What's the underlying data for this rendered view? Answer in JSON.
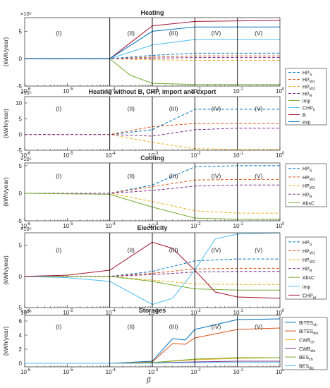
{
  "figure": {
    "xlabel": "β"
  },
  "chart_data": [
    {
      "type": "line",
      "title": "Heating",
      "ylabel": "(kWh/year)",
      "exponent": "×10⁶",
      "yticks": [
        {
          "v": -5,
          "t": "-5"
        },
        {
          "v": 0,
          "t": "0"
        },
        {
          "v": 5,
          "t": "5"
        }
      ],
      "ylim": [
        -5,
        7.5
      ],
      "xlog": true,
      "xlim": [
        1e-06,
        1
      ],
      "region_labels": [
        "(I)",
        "(II)",
        "(III)",
        "(IV)",
        "(V)"
      ],
      "legend": [
        "HP<sub>S</sub>",
        "HP<sub>W1</sub>",
        "HP<sub>W2</sub>",
        "HP<sub>R</sub>",
        "imp",
        "CHP<sub>h</sub>",
        "B",
        "exp"
      ],
      "series": [
        {
          "name": "HP_S",
          "dashed": true,
          "color": "#0072BD",
          "x": [
            1e-06,
            0.0001,
            0.001,
            0.01,
            0.1,
            1
          ],
          "y": [
            0,
            0,
            0.6,
            1,
            1,
            1
          ]
        },
        {
          "name": "HP_W1",
          "dashed": true,
          "color": "#D95319",
          "x": [
            1e-06,
            0.0001,
            0.001,
            0.01,
            0.1,
            1
          ],
          "y": [
            0,
            0,
            0.3,
            0.5,
            0.5,
            0.5
          ]
        },
        {
          "name": "HP_W2",
          "dashed": true,
          "color": "#EDB120",
          "x": [
            1e-06,
            0.0001,
            0.001,
            0.01,
            0.1,
            1
          ],
          "y": [
            0,
            0,
            -0.2,
            -0.3,
            -0.3,
            -0.3
          ]
        },
        {
          "name": "HP_R",
          "dashed": true,
          "color": "#7E2F8E",
          "x": [
            1e-06,
            0.0001,
            0.001,
            0.01,
            0.1,
            1
          ],
          "y": [
            0,
            0,
            0.1,
            0.2,
            0.2,
            0.2
          ]
        },
        {
          "name": "imp",
          "dashed": false,
          "color": "#77AC30",
          "x": [
            1e-06,
            0.0001,
            0.0003,
            0.001,
            0.01,
            1
          ],
          "y": [
            0,
            0,
            -3,
            -4.5,
            -4.7,
            -4.7
          ]
        },
        {
          "name": "CHP_h",
          "dashed": false,
          "color": "#4DBEEE",
          "x": [
            1e-06,
            0.0001,
            0.001,
            0.01,
            1
          ],
          "y": [
            0,
            0,
            2.5,
            3.5,
            3.5
          ]
        },
        {
          "name": "B",
          "dashed": false,
          "color": "#A2142F",
          "x": [
            1e-06,
            0.0001,
            0.001,
            0.01,
            1
          ],
          "y": [
            0,
            0,
            6,
            6.8,
            7
          ]
        },
        {
          "name": "exp",
          "dashed": false,
          "color": "#0072BD",
          "x": [
            1e-06,
            0.0001,
            0.001,
            0.01,
            1
          ],
          "y": [
            0,
            0,
            5,
            5.8,
            5.8
          ]
        }
      ]
    },
    {
      "type": "line",
      "title": "Heating without B, CHP, import and export",
      "ylabel": "(kWh/year)",
      "exponent": "×10⁵",
      "yticks": [
        {
          "v": -5,
          "t": "-5"
        },
        {
          "v": 0,
          "t": "0"
        },
        {
          "v": 5,
          "t": "5"
        },
        {
          "v": 10,
          "t": "10"
        }
      ],
      "ylim": [
        -5,
        12
      ],
      "xlog": true,
      "xlim": [
        1e-06,
        1
      ],
      "region_labels": [
        "(I)",
        "(II)",
        "(III)",
        "(IV)",
        "(V)"
      ],
      "legend": [],
      "series": [
        {
          "name": "HP_S",
          "dashed": true,
          "color": "#0072BD",
          "x": [
            1e-06,
            0.0001,
            0.001,
            0.01,
            0.1,
            1
          ],
          "y": [
            0,
            0,
            1.5,
            8,
            8,
            8
          ]
        },
        {
          "name": "HP_W1",
          "dashed": true,
          "color": "#D95319",
          "x": [
            1e-06,
            0.0001,
            0.001,
            0.01,
            0.1,
            1
          ],
          "y": [
            0,
            0,
            2.5,
            3.5,
            3.5,
            3.5
          ]
        },
        {
          "name": "HP_W2",
          "dashed": true,
          "color": "#EDB120",
          "x": [
            1e-06,
            0.0001,
            0.001,
            0.01,
            0.1,
            1
          ],
          "y": [
            0,
            0,
            -2.5,
            -4.5,
            -4.7,
            -4.7
          ]
        },
        {
          "name": "HP_R",
          "dashed": true,
          "color": "#7E2F8E",
          "x": [
            1e-06,
            0.0001,
            0.001,
            0.01,
            0.1,
            1
          ],
          "y": [
            0,
            0,
            -0.5,
            1.5,
            2,
            2
          ]
        }
      ]
    },
    {
      "type": "line",
      "title": "Cooling",
      "ylabel": "(kWh/year)",
      "exponent": "×10⁵",
      "yticks": [
        {
          "v": -5,
          "t": "-5"
        },
        {
          "v": 0,
          "t": "0"
        },
        {
          "v": 5,
          "t": "5"
        }
      ],
      "ylim": [
        -5,
        5.5
      ],
      "xlog": true,
      "xlim": [
        1e-06,
        1
      ],
      "region_labels": [
        "(I)",
        "(II)",
        "(III)",
        "(IV)",
        "(V)"
      ],
      "legend": [
        "HP<sub>S</sub>",
        "HP<sub>W1</sub>",
        "HP<sub>W2</sub>",
        "HP<sub>R</sub>",
        "AbsC"
      ],
      "series": [
        {
          "name": "HP_S",
          "dashed": true,
          "color": "#0072BD",
          "x": [
            1e-06,
            0.0001,
            0.001,
            0.01,
            0.1,
            1
          ],
          "y": [
            0,
            0,
            1.5,
            4.8,
            5,
            5
          ]
        },
        {
          "name": "HP_W1",
          "dashed": true,
          "color": "#D95319",
          "x": [
            1e-06,
            0.0001,
            0.001,
            0.01,
            0.1,
            1
          ],
          "y": [
            0,
            0,
            1.2,
            2.4,
            2.5,
            2.5
          ]
        },
        {
          "name": "HP_W2",
          "dashed": true,
          "color": "#EDB120",
          "x": [
            1e-06,
            0.0001,
            0.001,
            0.01,
            0.1,
            1
          ],
          "y": [
            0,
            0,
            -1.5,
            -3.2,
            -3.6,
            -3.6
          ]
        },
        {
          "name": "HP_R",
          "dashed": true,
          "color": "#7E2F8E",
          "x": [
            1e-06,
            0.0001,
            0.001,
            0.01,
            0.1,
            1
          ],
          "y": [
            0,
            0,
            0.5,
            1.3,
            1.5,
            1.5
          ]
        },
        {
          "name": "AbsC",
          "dashed": false,
          "color": "#77AC30",
          "x": [
            1e-06,
            0.0001,
            0.001,
            0.01,
            0.1,
            1
          ],
          "y": [
            0,
            -0.2,
            -2.5,
            -4.5,
            -4.7,
            -4.7
          ]
        }
      ]
    },
    {
      "type": "line",
      "title": "Electricity",
      "ylabel": "(kWh/year)",
      "exponent": "×10⁵",
      "yticks": [
        {
          "v": -5,
          "t": "-5"
        },
        {
          "v": 0,
          "t": "0"
        },
        {
          "v": 5,
          "t": "5"
        }
      ],
      "ylim": [
        -5,
        7
      ],
      "xlog": true,
      "xlim": [
        1e-06,
        1
      ],
      "region_labels": [
        "(I)",
        "(II)",
        "(III)",
        "(IV)",
        "(V)"
      ],
      "legend": [
        "HP<sub>S</sub>",
        "HP<sub>W1</sub>",
        "HP<sub>W2</sub>",
        "HP<sub>R</sub>",
        "AbsC",
        "imp",
        "CHP<sub>el</sub>"
      ],
      "series": [
        {
          "name": "HP_S",
          "dashed": true,
          "color": "#0072BD",
          "x": [
            1e-06,
            0.0001,
            0.001,
            0.01,
            0.1,
            1
          ],
          "y": [
            0,
            0,
            0.8,
            2.5,
            2.8,
            2.8
          ]
        },
        {
          "name": "HP_W1",
          "dashed": true,
          "color": "#D95319",
          "x": [
            1e-06,
            0.0001,
            0.001,
            0.01,
            0.1,
            1
          ],
          "y": [
            0,
            0,
            0.5,
            1.2,
            1.3,
            1.3
          ]
        },
        {
          "name": "HP_W2",
          "dashed": true,
          "color": "#EDB120",
          "x": [
            1e-06,
            0.0001,
            0.001,
            0.01,
            0.1,
            1
          ],
          "y": [
            0,
            0,
            -0.6,
            -1.2,
            -1.3,
            -1.3
          ]
        },
        {
          "name": "HP_R",
          "dashed": true,
          "color": "#7E2F8E",
          "x": [
            1e-06,
            0.0001,
            0.001,
            0.01,
            0.1,
            1
          ],
          "y": [
            0,
            0,
            0.3,
            0.7,
            0.8,
            0.8
          ]
        },
        {
          "name": "AbsC",
          "dashed": false,
          "color": "#77AC30",
          "x": [
            1e-06,
            0.0001,
            0.001,
            0.01,
            0.1,
            1
          ],
          "y": [
            0,
            0,
            -0.8,
            -2,
            -2.2,
            -2.2
          ]
        },
        {
          "name": "imp",
          "dashed": false,
          "color": "#4DBEEE",
          "x": [
            1e-06,
            1e-05,
            0.0001,
            0.001,
            0.003,
            0.01,
            0.03,
            0.1,
            1
          ],
          "y": [
            0,
            -0.2,
            -0.8,
            -4.5,
            -3.5,
            1,
            6,
            6.8,
            7
          ]
        },
        {
          "name": "CHP_el",
          "dashed": false,
          "color": "#A2142F",
          "x": [
            1e-06,
            1e-05,
            0.0001,
            0.001,
            0.003,
            0.01,
            0.03,
            0.1,
            1
          ],
          "y": [
            0,
            0.2,
            1,
            5.5,
            4.5,
            1,
            -2.5,
            -3.3,
            -3.5
          ]
        }
      ]
    },
    {
      "type": "line",
      "title": "Storages",
      "ylabel": "(kWh/year)",
      "exponent": "×10⁵",
      "yticks": [
        {
          "v": 0,
          "t": "0"
        },
        {
          "v": 2,
          "t": "2"
        },
        {
          "v": 4,
          "t": "4"
        },
        {
          "v": 6,
          "t": "6"
        }
      ],
      "ylim": [
        -0.5,
        6.8
      ],
      "xlog": true,
      "xlim": [
        1e-06,
        1
      ],
      "region_labels": [
        "(I)",
        "(II)",
        "(III)",
        "(IV)",
        "(V)"
      ],
      "legend": [
        "BITES<sub>ch</sub>",
        "BITES<sub>dis</sub>",
        "CWB<sub>ch</sub>",
        "CWB<sub>dis</sub>",
        "BES<sub>ch</sub>",
        "BES<sub>dis</sub>"
      ],
      "series": [
        {
          "name": "BITES_ch",
          "dashed": false,
          "color": "#0072BD",
          "x": [
            1e-06,
            0.0001,
            0.001,
            0.003,
            0.006,
            0.01,
            0.1,
            1
          ],
          "y": [
            0,
            0,
            0.3,
            3.5,
            3.3,
            4.8,
            6.2,
            6.3
          ]
        },
        {
          "name": "BITES_dis",
          "dashed": false,
          "color": "#D95319",
          "x": [
            1e-06,
            0.0001,
            0.001,
            0.003,
            0.006,
            0.01,
            0.1,
            1
          ],
          "y": [
            0,
            0,
            0.2,
            2.8,
            2.7,
            3.6,
            4.8,
            5
          ]
        },
        {
          "name": "CWB_ch",
          "dashed": false,
          "color": "#EDB120",
          "x": [
            1e-06,
            0.0001,
            0.001,
            0.01,
            0.1,
            1
          ],
          "y": [
            0,
            0,
            0.1,
            0.5,
            0.7,
            0.8
          ]
        },
        {
          "name": "CWB_dis",
          "dashed": false,
          "color": "#7E2F8E",
          "x": [
            1e-06,
            0.0001,
            0.001,
            0.01,
            0.1,
            1
          ],
          "y": [
            0,
            0,
            0.05,
            0.2,
            0.3,
            0.3
          ]
        },
        {
          "name": "BES_ch",
          "dashed": false,
          "color": "#77AC30",
          "x": [
            1e-06,
            0.0001,
            0.001,
            0.01,
            0.1,
            1
          ],
          "y": [
            0,
            0,
            0.1,
            0.6,
            0.8,
            0.8
          ]
        },
        {
          "name": "BES_dis",
          "dashed": false,
          "color": "#4DBEEE",
          "x": [
            1e-06,
            0.0001,
            0.001,
            0.01,
            0.1,
            1
          ],
          "y": [
            0,
            0,
            0.02,
            0.1,
            0.12,
            0.12
          ]
        }
      ]
    }
  ],
  "x_tick_labels": [
    "10<tspan dy='-4' font-size='6'>-6</tspan>",
    "10<tspan dy='-4' font-size='6'>-5</tspan>",
    "10<tspan dy='-4' font-size='6'>-4</tspan>",
    "10<tspan dy='-4' font-size='6'>-3</tspan>",
    "10<tspan dy='-4' font-size='6'>-2</tspan>",
    "10<tspan dy='-4' font-size='6'>-1</tspan>",
    "10<tspan dy='-4' font-size='6'>0</tspan>"
  ]
}
